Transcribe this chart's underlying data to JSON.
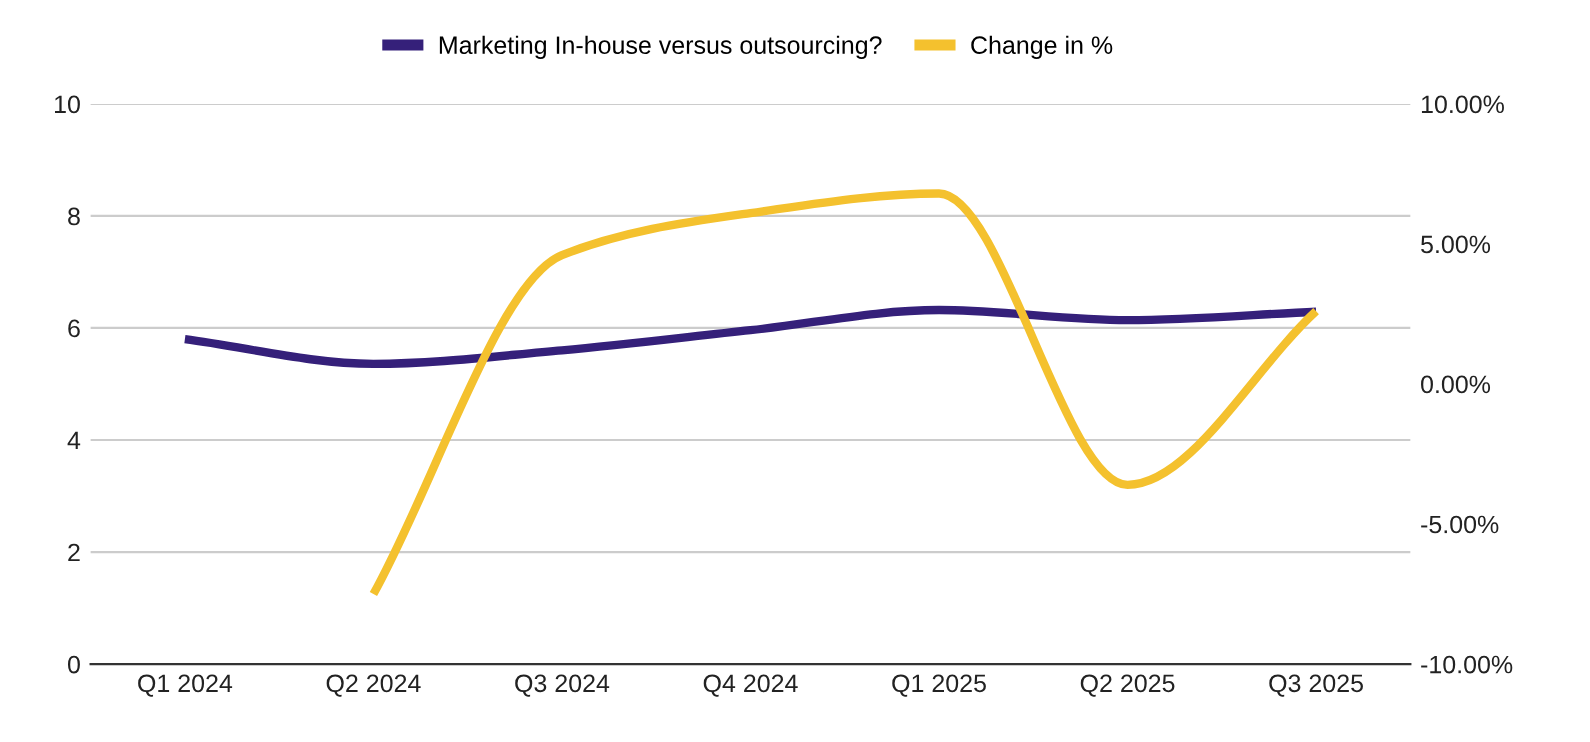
{
  "chart_data": {
    "type": "line",
    "categories": [
      "Q1 2024",
      "Q2 2024",
      "Q3 2024",
      "Q4 2024",
      "Q1 2025",
      "Q2 2025",
      "Q3 2025"
    ],
    "series": [
      {
        "name": "Marketing In-house versus outsourcing?",
        "color": "#35207a",
        "values": [
          5.8,
          5.36,
          5.6,
          5.96,
          6.32,
          6.14,
          6.29
        ]
      },
      {
        "name": "Change in %",
        "color": "#f4c12e",
        "axis": "y2",
        "values": [
          null,
          -7.5,
          4.6,
          6.1,
          6.8,
          -3.6,
          2.6
        ]
      }
    ],
    "ylim": [
      0,
      10
    ],
    "yticks": [
      0,
      2,
      4,
      6,
      8,
      10
    ],
    "y2lim": [
      -10,
      10
    ],
    "y2ticks": [
      {
        "value": -10,
        "label": "-10.00%"
      },
      {
        "value": -5,
        "label": "-5.00%"
      },
      {
        "value": 0,
        "label": "0.00%"
      },
      {
        "value": 5,
        "label": "5.00%"
      },
      {
        "value": 10,
        "label": "10.00%"
      }
    ],
    "grid": "y",
    "legend": "top",
    "marker": "none",
    "line_style": "solid"
  }
}
